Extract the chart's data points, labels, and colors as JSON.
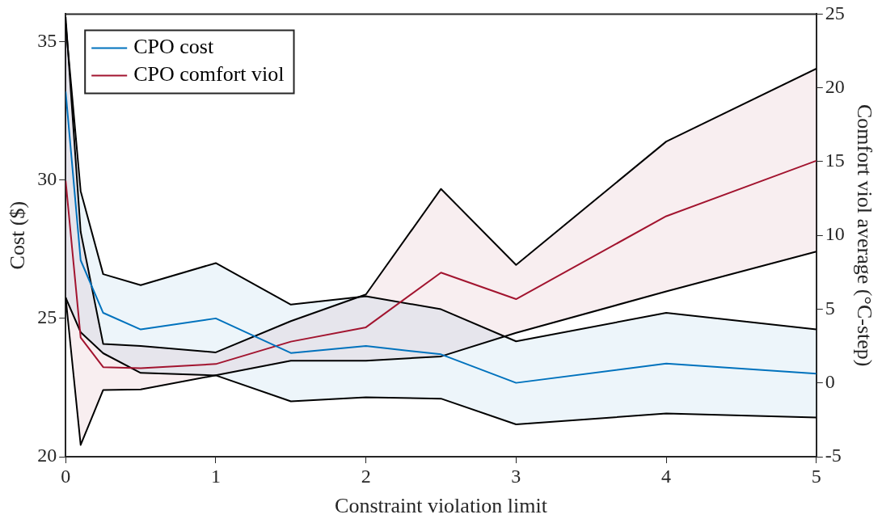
{
  "chart_data": {
    "type": "line",
    "xlabel": "Constraint violation limit",
    "ylabel": "Cost ($)",
    "y2label": "Comfort viol average (°C-step)",
    "x": [
      0,
      0.1,
      0.25,
      0.5,
      1,
      1.5,
      2,
      2.5,
      3,
      4,
      5
    ],
    "series": [
      {
        "name": "CPO cost",
        "color": "#0072bd",
        "values": [
          33.2,
          27.1,
          25.2,
          24.6,
          25.0,
          23.75,
          24.0,
          23.7,
          22.67,
          23.37,
          23.0
        ],
        "upper": [
          35.66,
          29.6,
          26.6,
          26.2,
          27.0,
          25.5,
          25.8,
          25.33,
          24.17,
          25.2,
          24.6
        ],
        "lower": [
          25.75,
          24.5,
          23.74,
          23.03,
          22.94,
          22.0,
          22.15,
          22.1,
          21.17,
          21.56,
          21.42
        ]
      },
      {
        "name": "CPO comfort viol",
        "color": "#a2142f",
        "axis": "y2",
        "values": [
          13.7,
          3.07,
          1.07,
          1.0,
          1.28,
          2.8,
          3.77,
          7.48,
          5.68,
          11.3,
          15.06
        ],
        "upper": [
          24.8,
          10.24,
          2.64,
          2.5,
          2.07,
          4.19,
          6.0,
          13.15,
          8.0,
          16.36,
          21.3
        ],
        "lower": [
          5.8,
          -4.2,
          -0.48,
          -0.44,
          0.52,
          1.5,
          1.5,
          1.8,
          3.4,
          6.2,
          8.9
        ]
      },
      {
        "color": "#000000",
        "values": [
          35.66,
          29.6,
          26.6,
          26.2,
          27.0,
          25.5,
          25.8,
          25.33,
          24.17,
          25.2,
          24.6
        ]
      },
      {
        "color": "#000000",
        "values": [
          25.75,
          24.5,
          23.74,
          23.03,
          22.94,
          22.0,
          22.15,
          22.1,
          21.17,
          21.56,
          21.42
        ]
      },
      {
        "color": "#000000",
        "axis": "y2",
        "values": [
          24.8,
          10.24,
          2.64,
          2.5,
          2.07,
          4.19,
          6.0,
          13.15,
          8.0,
          16.36,
          21.3
        ]
      },
      {
        "color": "#000000",
        "axis": "y2",
        "values": [
          5.8,
          -4.2,
          -0.48,
          -0.44,
          0.52,
          1.5,
          1.5,
          1.8,
          3.4,
          6.2,
          8.9
        ]
      }
    ],
    "xlim": [
      0,
      5
    ],
    "xticks": [
      0,
      1,
      2,
      3,
      4,
      5
    ],
    "ylim": [
      20,
      36
    ],
    "yticks": [
      20,
      25,
      30,
      35
    ],
    "y2lim": [
      -5,
      25
    ],
    "y2ticks": [
      -5,
      0,
      5,
      10,
      15,
      20,
      25
    ],
    "grid": false,
    "legend": "top left",
    "marker": "none",
    "line_style": "solid"
  }
}
